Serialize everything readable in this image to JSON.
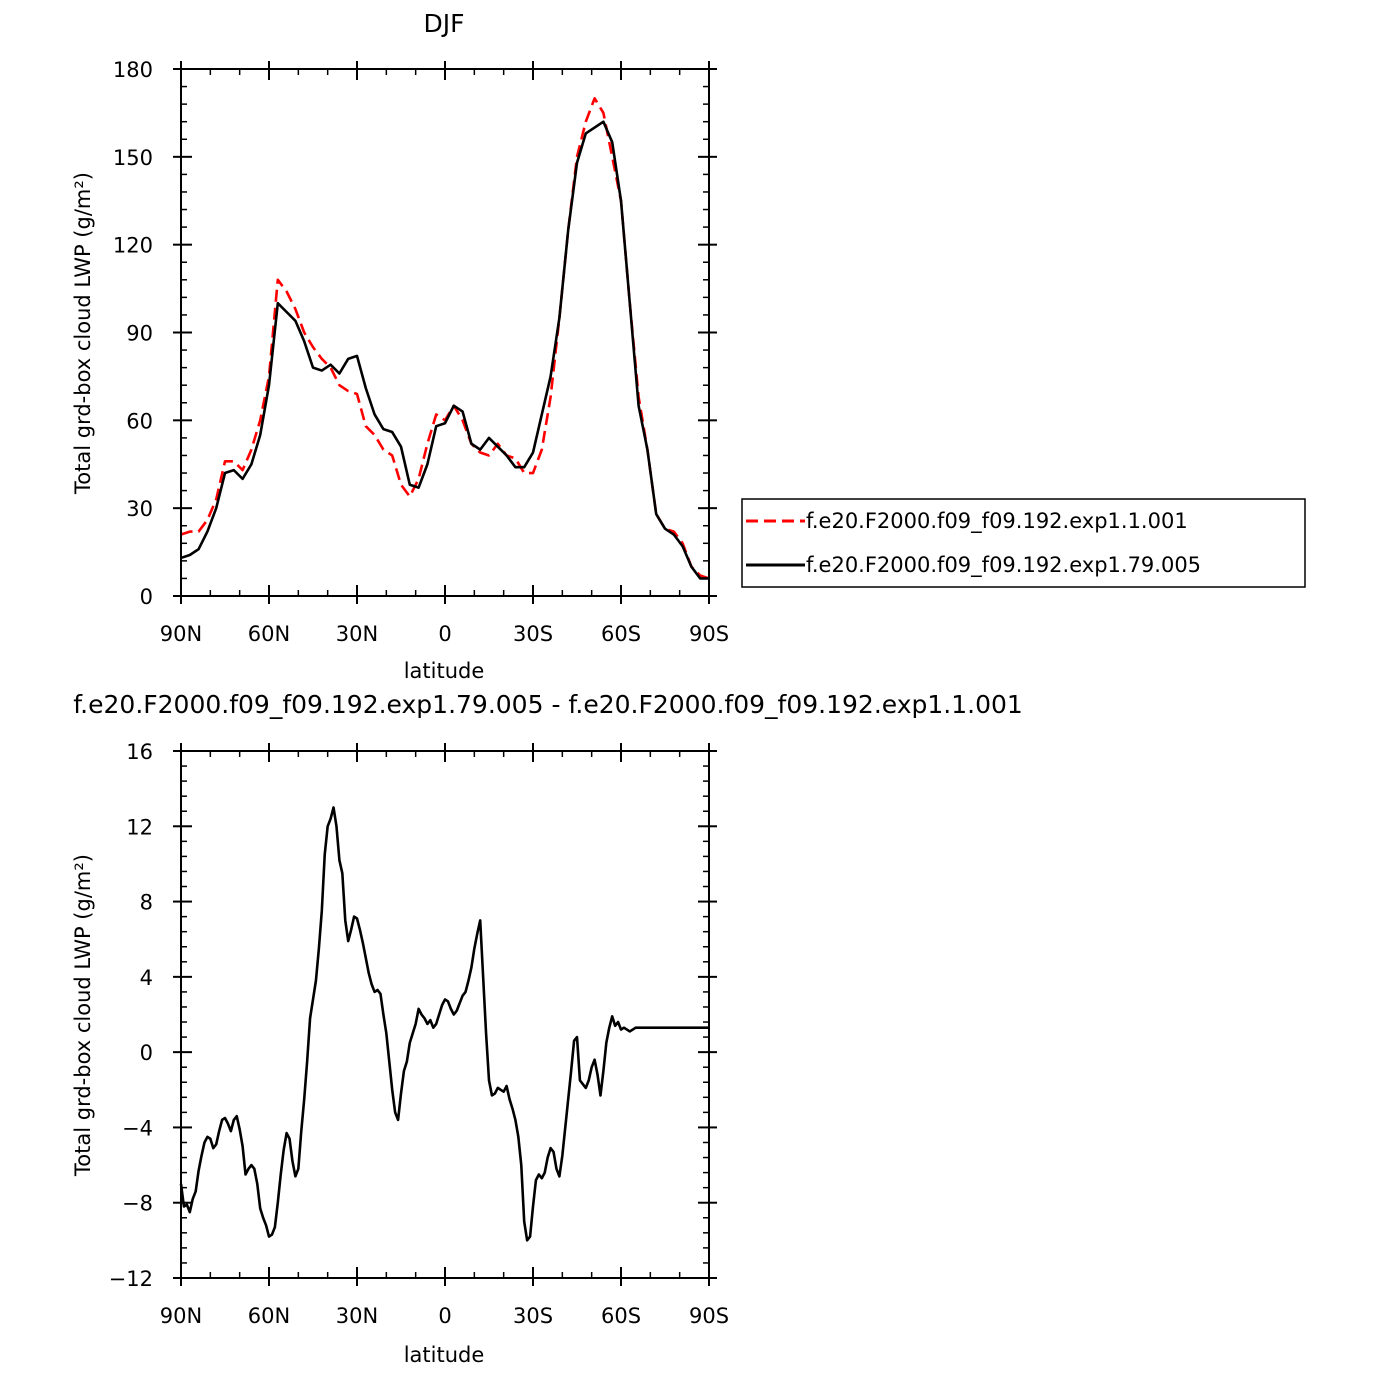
{
  "chart_data": [
    {
      "type": "line",
      "title": "DJF",
      "xlabel": "latitude",
      "ylabel": "Total grd-box cloud LWP (g/m²)",
      "xlim": [
        -90,
        90
      ],
      "ylim": [
        0,
        180
      ],
      "xtick_labels": [
        "90N",
        "60N",
        "30N",
        "0",
        "30S",
        "60S",
        "90S"
      ],
      "ytick_labels": [
        "0",
        "30",
        "60",
        "90",
        "120",
        "150",
        "180"
      ],
      "legend_position": "right",
      "series": [
        {
          "name": "f.e20.F2000.f09_f09.192.exp1.1.001",
          "color": "#ff0000",
          "dash": "dashed",
          "x": [
            -90,
            -87,
            -84,
            -81,
            -78,
            -75,
            -72,
            -69,
            -66,
            -63,
            -60,
            -57,
            -54,
            -51,
            -48,
            -45,
            -42,
            -39,
            -36,
            -33,
            -30,
            -27,
            -24,
            -21,
            -18,
            -15,
            -12,
            -9,
            -6,
            -3,
            0,
            3,
            6,
            9,
            12,
            15,
            18,
            21,
            24,
            27,
            30,
            33,
            36,
            39,
            42,
            45,
            48,
            51,
            54,
            57,
            60,
            63,
            66,
            69,
            72,
            75,
            78,
            81,
            84,
            87,
            90
          ],
          "values": [
            21,
            22,
            22,
            26,
            33,
            46,
            46,
            43,
            50,
            60,
            75,
            108,
            104,
            98,
            90,
            85,
            81,
            78,
            72,
            70,
            69,
            58,
            55,
            50,
            48,
            38,
            34,
            40,
            52,
            62,
            60,
            65,
            60,
            52,
            49,
            48,
            52,
            48,
            47,
            42,
            42,
            50,
            68,
            95,
            125,
            150,
            162,
            170,
            165,
            150,
            135,
            100,
            68,
            50,
            28,
            23,
            22,
            18,
            10,
            7,
            6
          ]
        },
        {
          "name": "f.e20.F2000.f09_f09.192.exp1.79.005",
          "color": "#000000",
          "dash": "solid",
          "x": [
            -90,
            -87,
            -84,
            -81,
            -78,
            -75,
            -72,
            -69,
            -66,
            -63,
            -60,
            -57,
            -54,
            -51,
            -48,
            -45,
            -42,
            -39,
            -36,
            -33,
            -30,
            -27,
            -24,
            -21,
            -18,
            -15,
            -12,
            -9,
            -6,
            -3,
            0,
            3,
            6,
            9,
            12,
            15,
            18,
            21,
            24,
            27,
            30,
            33,
            36,
            39,
            42,
            45,
            48,
            51,
            54,
            57,
            60,
            63,
            66,
            69,
            72,
            75,
            78,
            81,
            84,
            87,
            90
          ],
          "values": [
            13,
            14,
            16,
            22,
            30,
            42,
            43,
            40,
            45,
            55,
            72,
            100,
            97,
            94,
            87,
            78,
            77,
            79,
            76,
            81,
            82,
            71,
            62,
            57,
            56,
            51,
            38,
            37,
            45,
            58,
            59,
            65,
            63,
            52,
            50,
            54,
            51,
            48,
            44,
            44,
            49,
            62,
            75,
            95,
            125,
            148,
            158,
            160,
            162,
            155,
            135,
            100,
            65,
            50,
            28,
            23,
            21,
            17,
            10,
            6,
            6
          ]
        }
      ]
    },
    {
      "type": "line",
      "title": "f.e20.F2000.f09_f09.192.exp1.79.005 - f.e20.F2000.f09_f09.192.exp1.1.001",
      "xlabel": "latitude",
      "ylabel": "Total grd-box cloud LWP (g/m²)",
      "xlim": [
        -90,
        90
      ],
      "ylim": [
        -12,
        16
      ],
      "xtick_labels": [
        "90N",
        "60N",
        "30N",
        "0",
        "30S",
        "60S",
        "90S"
      ],
      "ytick_labels": [
        "−12",
        "−8",
        "−4",
        "0",
        "4",
        "8",
        "12",
        "16"
      ],
      "series": [
        {
          "color": "#000000",
          "dash": "solid",
          "x": [
            -90,
            -89,
            -88,
            -87,
            -86,
            -85,
            -84,
            -83,
            -82,
            -81,
            -80,
            -79,
            -78,
            -77,
            -76,
            -75,
            -74,
            -73,
            -72,
            -71,
            -70,
            -69,
            -68,
            -67,
            -66,
            -65,
            -64,
            -63,
            -62,
            -61,
            -60,
            -59,
            -58,
            -57,
            -56,
            -55,
            -54,
            -53,
            -52,
            -51,
            -50,
            -49,
            -48,
            -47,
            -46,
            -45,
            -44,
            -43,
            -42,
            -41,
            -40,
            -39,
            -38,
            -37,
            -36,
            -35,
            -34,
            -33,
            -32,
            -31,
            -30,
            -29,
            -28,
            -27,
            -26,
            -25,
            -24,
            -23,
            -22,
            -21,
            -20,
            -19,
            -18,
            -17,
            -16,
            -15,
            -14,
            -13,
            -12,
            -11,
            -10,
            -9,
            -8,
            -7,
            -6,
            -5,
            -4,
            -3,
            -2,
            -1,
            0,
            1,
            2,
            3,
            4,
            5,
            6,
            7,
            8,
            9,
            10,
            11,
            12,
            13,
            14,
            15,
            16,
            17,
            18,
            19,
            20,
            21,
            22,
            23,
            24,
            25,
            26,
            27,
            28,
            29,
            30,
            31,
            32,
            33,
            34,
            35,
            36,
            37,
            38,
            39,
            40,
            41,
            42,
            43,
            44,
            45,
            46,
            47,
            48,
            49,
            50,
            51,
            52,
            53,
            54,
            55,
            56,
            57,
            58,
            59,
            60,
            61,
            62,
            63,
            64,
            65,
            66,
            67,
            68,
            69,
            70,
            71,
            72,
            73,
            74,
            75,
            76,
            77,
            78,
            79,
            80,
            81,
            82,
            83,
            84,
            85,
            86,
            87,
            88,
            89,
            90
          ],
          "values": [
            -7,
            -8.2,
            -8.1,
            -8.5,
            -7.8,
            -7.4,
            -6.3,
            -5.5,
            -4.8,
            -4.5,
            -4.6,
            -5.1,
            -4.9,
            -4.2,
            -3.6,
            -3.5,
            -3.8,
            -4.2,
            -3.6,
            -3.4,
            -4.1,
            -5.0,
            -6.5,
            -6.2,
            -6.0,
            -6.2,
            -7.0,
            -8.3,
            -8.8,
            -9.2,
            -9.8,
            -9.7,
            -9.3,
            -8.0,
            -6.5,
            -5.2,
            -4.3,
            -4.6,
            -5.8,
            -6.6,
            -6.2,
            -4.2,
            -2.5,
            -0.5,
            1.8,
            2.8,
            3.8,
            5.5,
            7.5,
            10.5,
            12.0,
            12.4,
            13.0,
            12.0,
            10.2,
            9.5,
            7.0,
            5.9,
            6.5,
            7.2,
            7.1,
            6.5,
            5.8,
            5.0,
            4.2,
            3.6,
            3.2,
            3.3,
            3.1,
            2.0,
            1.0,
            -0.5,
            -2.0,
            -3.2,
            -3.6,
            -2.2,
            -1.0,
            -0.5,
            0.5,
            1.0,
            1.5,
            2.3,
            2.0,
            1.8,
            1.5,
            1.7,
            1.3,
            1.5,
            2.0,
            2.5,
            2.8,
            2.7,
            2.3,
            2.0,
            2.2,
            2.6,
            3.0,
            3.2,
            3.8,
            4.5,
            5.5,
            6.3,
            7.0,
            4.0,
            1.0,
            -1.5,
            -2.3,
            -2.2,
            -1.9,
            -2.0,
            -2.1,
            -1.8,
            -2.5,
            -3.0,
            -3.6,
            -4.5,
            -6.0,
            -9.0,
            -10.0,
            -9.8,
            -8.2,
            -6.8,
            -6.5,
            -6.7,
            -6.4,
            -5.6,
            -5.1,
            -5.3,
            -6.2,
            -6.6,
            -5.5,
            -4.0,
            -2.5,
            -1.0,
            0.6,
            0.8,
            -1.5,
            -1.7,
            -1.9,
            -1.5,
            -0.8,
            -0.4,
            -1.2,
            -2.3,
            -1.0,
            0.5,
            1.3,
            1.9,
            1.4,
            1.6,
            1.2,
            1.3,
            1.2,
            1.1,
            1.2,
            1.3,
            1.3,
            1.3,
            1.3,
            1.3,
            1.3,
            1.3,
            1.3,
            1.3,
            1.3,
            1.3,
            1.3,
            1.3,
            1.3,
            1.3,
            1.3,
            1.3,
            1.3,
            1.3,
            1.3,
            1.3,
            1.3,
            1.3,
            1.3,
            1.3,
            1.3
          ]
        }
      ]
    }
  ]
}
